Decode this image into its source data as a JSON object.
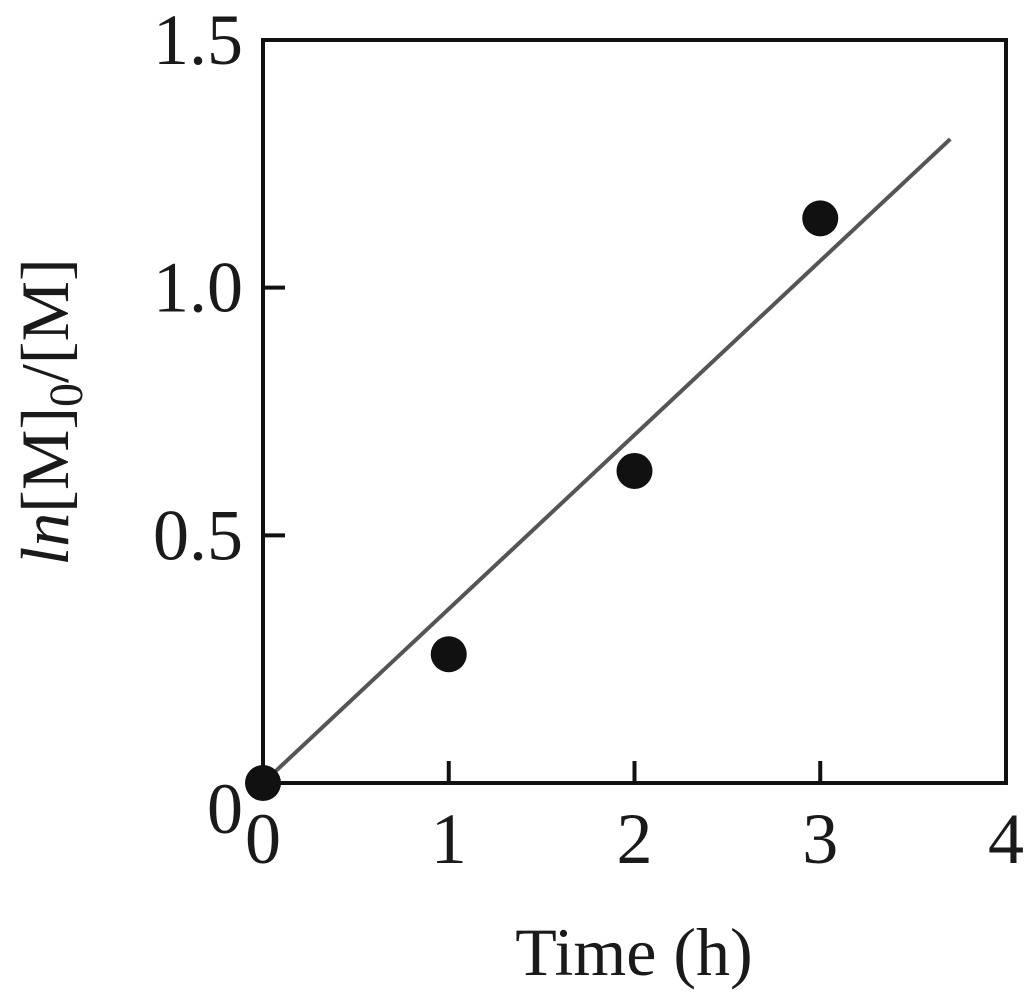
{
  "chart_data": {
    "type": "scatter",
    "xlabel": "Time (h)",
    "ylabel": {
      "prefix": "ln",
      "body1": "[M]",
      "subscript": "0",
      "body2": "/[M]"
    },
    "xlim": [
      0,
      4
    ],
    "ylim": [
      0,
      1.5
    ],
    "x_ticks": [
      {
        "value": 0,
        "label": "0"
      },
      {
        "value": 1,
        "label": "1"
      },
      {
        "value": 2,
        "label": "2"
      },
      {
        "value": 3,
        "label": "3"
      },
      {
        "value": 4,
        "label": "4"
      }
    ],
    "y_ticks": [
      {
        "value": 0,
        "label": "0"
      },
      {
        "value": 0.5,
        "label": "0.5"
      },
      {
        "value": 1.0,
        "label": "1.0"
      },
      {
        "value": 1.5,
        "label": "1.5"
      }
    ],
    "series": [
      {
        "x": [
          0,
          1,
          2,
          3
        ],
        "y": [
          0.0,
          0.26,
          0.63,
          1.14
        ]
      }
    ],
    "fit_line": {
      "x": [
        0,
        3.7
      ],
      "y": [
        0.0,
        1.3
      ]
    },
    "grid": false,
    "colors": {
      "marker": "#111111",
      "line": "#555555",
      "axis": "#111111"
    }
  }
}
